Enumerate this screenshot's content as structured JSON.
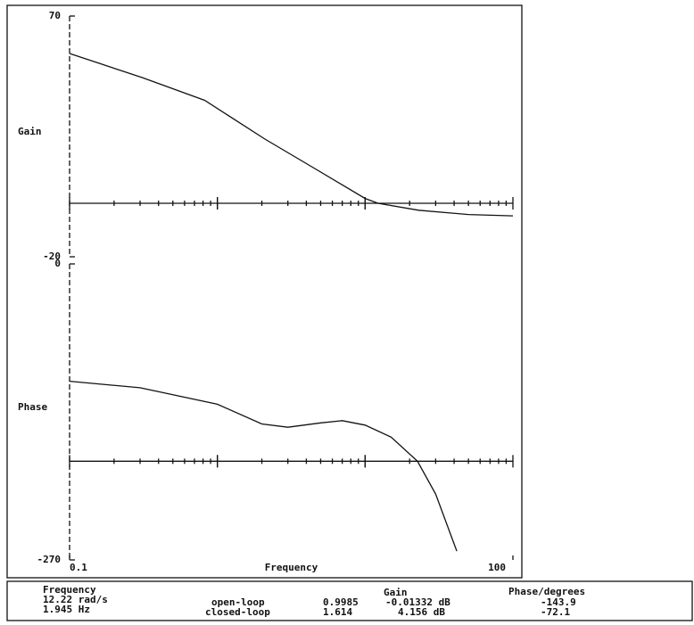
{
  "chart_data": [
    {
      "type": "line",
      "y_label": "Gain",
      "log_x": true,
      "x": [
        0.1,
        0.31,
        0.82,
        2.1,
        4.4,
        10,
        12.22,
        23,
        50,
        100
      ],
      "series": [
        {
          "color": "#111111",
          "values": [
            56,
            47,
            38.5,
            24,
            13.5,
            1.8,
            0,
            -2.6,
            -4.2,
            -4.7
          ]
        }
      ],
      "xlim": [
        0.1,
        100
      ],
      "ylim": [
        -20,
        70
      ],
      "yticks": [
        -20,
        70
      ],
      "reference_line": 0
    },
    {
      "type": "line",
      "y_label": "Phase",
      "x_label": "Frequency",
      "log_x": true,
      "x": [
        0.1,
        0.3,
        1,
        2,
        3,
        5,
        7,
        10,
        15,
        22.6,
        30,
        41.7
      ],
      "series": [
        {
          "color": "#111111",
          "values": [
            -107,
            -113,
            -128,
            -146,
            -149,
            -145,
            -143,
            -147,
            -158,
            -180,
            -210,
            -262
          ]
        }
      ],
      "xlim": [
        0.1,
        100
      ],
      "xticks": [
        0.1,
        100
      ],
      "ylim": [
        -270,
        0
      ],
      "yticks": [
        -270,
        0
      ],
      "reference_line": -180
    }
  ],
  "readout": {
    "frequency_header": "Frequency",
    "rad": "12.22 rad/s",
    "hz": "1.945 Hz",
    "open_loop": "open-loop",
    "closed_loop": "closed-loop",
    "open_mag": "0.9985",
    "closed_mag": "1.614",
    "gain_header": "Gain",
    "open_gain": "-0.01332 dB",
    "closed_gain": "4.156 dB",
    "phase_header": "Phase/degrees",
    "open_phase": "-143.9",
    "closed_phase": "-72.1"
  }
}
